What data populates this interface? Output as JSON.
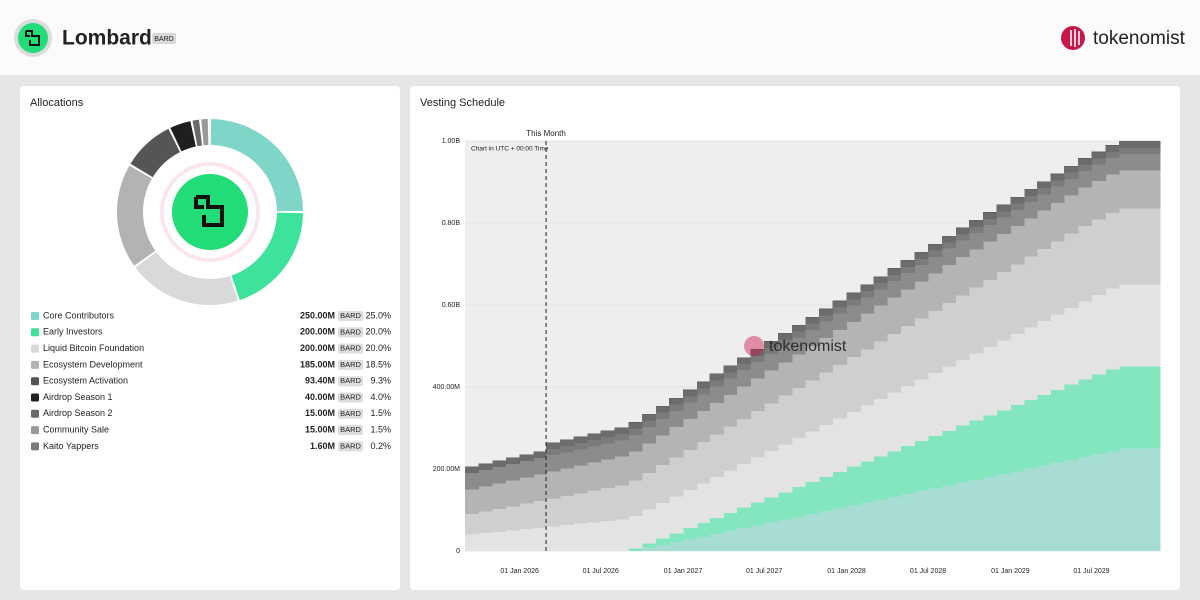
{
  "header": {
    "title": "Lombard",
    "ticker": "BARD",
    "brand": "tokenomist"
  },
  "chart_data": [
    {
      "type": "pie",
      "title": "Allocations",
      "categories": [
        "Core Contributors",
        "Early Investors",
        "Liquid Bitcoin Foundation",
        "Ecosystem Development",
        "Ecosystem Activation",
        "Airdrop Season 1",
        "Airdrop Season 2",
        "Community Sale",
        "Kaito Yappers"
      ],
      "values": [
        25,
        20,
        20,
        18.5,
        9.3,
        4,
        1.5,
        1.5,
        0.2
      ],
      "value_labels": [
        "25.0%",
        "20.0%",
        "20.0%",
        "18.5%",
        "9.3%",
        "4.0%",
        "1.5%",
        "1.5%",
        "0.2%"
      ],
      "amount_labels": [
        "250.00M",
        "200.00M",
        "200.00M",
        "185.00M",
        "93.40M",
        "40.00M",
        "15.00M",
        "15.00M",
        "1.60M"
      ],
      "unit": "BARD",
      "colors": [
        "#7fd6c8",
        "#3de39b",
        "#d9d9d9",
        "#b3b3b3",
        "#555555",
        "#1f1f1f",
        "#6a6a6a",
        "#9a9a9a",
        "#7a7a7a"
      ]
    },
    {
      "type": "area",
      "stacked": true,
      "title": "Vesting Schedule",
      "note": "Chart in UTC + 00:00 Time",
      "this_month": {
        "label": "This Month",
        "x": "2026-03-01"
      },
      "x": [
        "2025-09-01",
        "2025-10-01",
        "2025-11-01",
        "2025-12-01",
        "2026-01-01",
        "2026-02-01",
        "2026-03-01",
        "2026-04-01",
        "2026-05-01",
        "2026-06-01",
        "2026-07-01",
        "2026-08-01",
        "2026-09-01",
        "2026-10-01",
        "2026-11-01",
        "2026-12-01",
        "2027-01-01",
        "2027-02-01",
        "2027-03-01",
        "2027-04-01",
        "2027-05-01",
        "2027-06-01",
        "2027-07-01",
        "2027-08-01",
        "2027-09-01",
        "2027-10-01",
        "2027-11-01",
        "2027-12-01",
        "2028-01-01",
        "2028-02-01",
        "2028-03-01",
        "2028-04-01",
        "2028-05-01",
        "2028-06-01",
        "2028-07-01",
        "2028-08-01",
        "2028-09-01",
        "2028-10-01",
        "2028-11-01",
        "2028-12-01",
        "2029-01-01",
        "2029-02-01",
        "2029-03-01",
        "2029-04-01",
        "2029-05-01",
        "2029-06-01",
        "2029-07-01",
        "2029-08-01",
        "2029-09-01",
        "2029-10-01",
        "2029-11-01"
      ],
      "xlim": [
        "2025-09-01",
        "2029-12-01"
      ],
      "xticks": [
        {
          "value": "2026-01-01",
          "label": "01 Jan 2026"
        },
        {
          "value": "2026-07-01",
          "label": "01 Jul 2026"
        },
        {
          "value": "2027-01-01",
          "label": "01 Jan 2027"
        },
        {
          "value": "2027-07-01",
          "label": "01 Jul 2027"
        },
        {
          "value": "2028-01-01",
          "label": "01 Jan 2028"
        },
        {
          "value": "2028-07-01",
          "label": "01 Jul 2028"
        },
        {
          "value": "2029-01-01",
          "label": "01 Jan 2029"
        },
        {
          "value": "2029-07-01",
          "label": "01 Jul 2029"
        }
      ],
      "ylim": [
        0,
        1000
      ],
      "yticks": [
        0,
        {
          "value": 200,
          "label": "200.00M"
        },
        {
          "value": 400,
          "label": "400.00M"
        },
        {
          "value": 600,
          "label": "0.60B"
        },
        {
          "value": 800,
          "label": "0.80B"
        },
        {
          "value": 1000,
          "label": "1.00B"
        }
      ],
      "grid": true,
      "series": [
        {
          "name": "Core Contributors",
          "color": "#a8ddd5",
          "values": [
            0,
            0,
            0,
            0,
            0,
            0,
            0,
            0,
            0,
            0,
            0,
            0,
            0,
            6.9,
            13.9,
            20.8,
            27.8,
            34.7,
            41.7,
            48.6,
            55.6,
            62.5,
            69.4,
            76.4,
            83.3,
            90.3,
            97.2,
            104.2,
            111.1,
            118.1,
            125,
            131.9,
            138.9,
            145.8,
            152.8,
            159.7,
            166.7,
            173.6,
            180.6,
            187.5,
            194.4,
            201.4,
            208.3,
            215.3,
            222.2,
            229.2,
            236.1,
            243.1,
            250,
            250,
            250
          ]
        },
        {
          "name": "Early Investors",
          "color": "#84e6bf",
          "values": [
            0,
            0,
            0,
            0,
            0,
            0,
            0,
            0,
            0,
            0,
            0,
            0,
            5.6,
            11.1,
            16.7,
            22.2,
            27.8,
            33.3,
            38.9,
            44.4,
            50,
            55.6,
            61.1,
            66.7,
            72.2,
            77.8,
            83.3,
            88.9,
            94.4,
            100,
            105.6,
            111.1,
            116.7,
            122.2,
            127.8,
            133.3,
            138.9,
            144.4,
            150,
            155.6,
            161.1,
            166.7,
            172.2,
            177.8,
            183.3,
            188.9,
            194.4,
            200,
            200,
            200,
            200
          ]
        },
        {
          "name": "Liquid Bitcoin Foundation",
          "color": "#e4e3e4",
          "values": [
            40,
            43.3,
            46.7,
            50,
            53.3,
            56.7,
            60,
            63.3,
            66.7,
            70,
            73.3,
            76.7,
            80,
            83.3,
            86.7,
            90,
            93.3,
            96.7,
            100,
            103.3,
            106.7,
            110,
            113.3,
            116.7,
            120,
            123.3,
            126.7,
            130,
            133.3,
            136.7,
            140,
            143.3,
            146.7,
            150,
            153.3,
            156.7,
            160,
            163.3,
            166.7,
            170,
            173.3,
            176.7,
            180,
            183.3,
            186.7,
            190,
            193.3,
            196.7,
            200,
            200,
            200
          ]
        },
        {
          "name": "Ecosystem Development",
          "color": "#cfcfcf",
          "values": [
            50,
            53,
            56,
            59,
            62,
            65,
            68,
            71,
            74,
            77,
            80,
            83,
            86,
            89,
            92,
            95,
            98,
            101,
            104,
            107,
            110,
            113,
            116,
            119,
            122,
            125,
            128,
            131,
            134,
            137,
            140,
            143,
            146,
            149,
            152,
            155,
            158,
            161,
            164,
            167,
            170,
            173,
            176,
            179,
            182,
            185,
            185,
            185,
            185,
            185,
            185
          ]
        },
        {
          "name": "Ecosystem Activation",
          "color": "#b4b4b4",
          "values": [
            60,
            60.9,
            61.9,
            62.8,
            63.7,
            64.6,
            65.6,
            66.5,
            67.4,
            68.4,
            69.3,
            70.2,
            71.1,
            72.1,
            73,
            73.9,
            74.8,
            75.8,
            76.7,
            77.6,
            78.6,
            79.5,
            80.4,
            81.3,
            82.3,
            83.2,
            84.1,
            85,
            86,
            86.9,
            87.8,
            88.8,
            89.7,
            90.6,
            91.5,
            92.5,
            93.4,
            93.4,
            93.4,
            93.4,
            93.4,
            93.4,
            93.4,
            93.4,
            93.4,
            93.4,
            93.4,
            93.4,
            93.4,
            93.4,
            93.4
          ]
        },
        {
          "name": "Airdrop Season 1",
          "color": "#8c8c8c",
          "values": [
            40,
            40,
            40,
            40,
            40,
            40,
            40,
            40,
            40,
            40,
            40,
            40,
            40,
            40,
            40,
            40,
            40,
            40,
            40,
            40,
            40,
            40,
            40,
            40,
            40,
            40,
            40,
            40,
            40,
            40,
            40,
            40,
            40,
            40,
            40,
            40,
            40,
            40,
            40,
            40,
            40,
            40,
            40,
            40,
            40,
            40,
            40,
            40,
            40,
            40,
            40
          ]
        },
        {
          "name": "Airdrop Season 2",
          "color": "#7b7b7b",
          "values": [
            0,
            0,
            0,
            0,
            0,
            0,
            15,
            15,
            15,
            15,
            15,
            15,
            15,
            15,
            15,
            15,
            15,
            15,
            15,
            15,
            15,
            15,
            15,
            15,
            15,
            15,
            15,
            15,
            15,
            15,
            15,
            15,
            15,
            15,
            15,
            15,
            15,
            15,
            15,
            15,
            15,
            15,
            15,
            15,
            15,
            15,
            15,
            15,
            15,
            15,
            15
          ]
        },
        {
          "name": "Community Sale",
          "color": "#6c6c6c",
          "values": [
            15,
            15,
            15,
            15,
            15,
            15,
            15,
            15,
            15,
            15,
            15,
            15,
            15,
            15,
            15,
            15,
            15,
            15,
            15,
            15,
            15,
            15,
            15,
            15,
            15,
            15,
            15,
            15,
            15,
            15,
            15,
            15,
            15,
            15,
            15,
            15,
            15,
            15,
            15,
            15,
            15,
            15,
            15,
            15,
            15,
            15,
            15,
            15,
            15,
            15,
            15
          ]
        },
        {
          "name": "Kaito Yappers",
          "color": "#5f5f5f",
          "values": [
            1.6,
            1.6,
            1.6,
            1.6,
            1.6,
            1.6,
            1.6,
            1.6,
            1.6,
            1.6,
            1.6,
            1.6,
            1.6,
            1.6,
            1.6,
            1.6,
            1.6,
            1.6,
            1.6,
            1.6,
            1.6,
            1.6,
            1.6,
            1.6,
            1.6,
            1.6,
            1.6,
            1.6,
            1.6,
            1.6,
            1.6,
            1.6,
            1.6,
            1.6,
            1.6,
            1.6,
            1.6,
            1.6,
            1.6,
            1.6,
            1.6,
            1.6,
            1.6,
            1.6,
            1.6,
            1.6,
            1.6,
            1.6,
            1.6,
            1.6,
            1.6
          ]
        }
      ]
    }
  ]
}
